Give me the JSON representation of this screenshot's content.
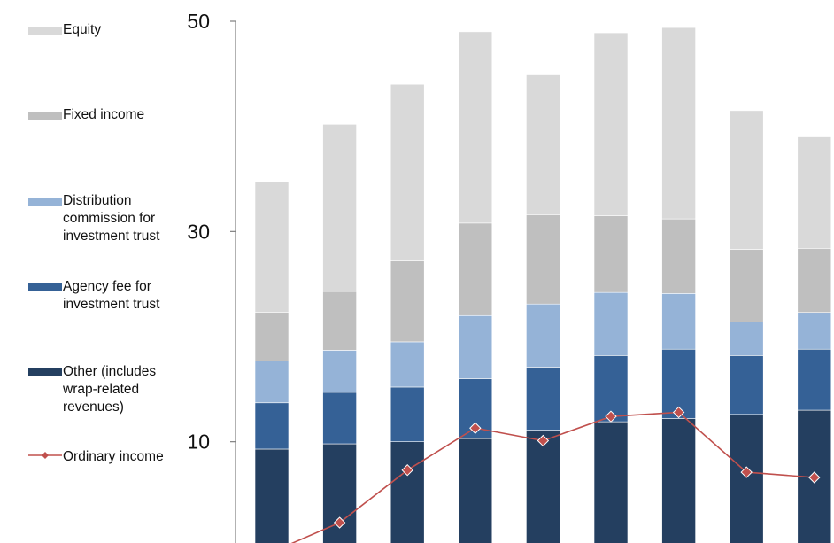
{
  "chart_data": {
    "type": "bar",
    "stacked": true,
    "title": "",
    "xlabel": "",
    "ylabel": "",
    "ylim": [
      -10,
      50
    ],
    "y_ticks": [
      10,
      30,
      50
    ],
    "grid": false,
    "legend_position": "left",
    "categories": [
      "",
      "",
      "",
      "",
      "",
      "",
      "",
      "",
      ""
    ],
    "series": [
      {
        "name": "Other (includes\nwrap-related\nrevenues)",
        "color": "#243f60",
        "values": [
          9.3,
          9.8,
          10.0,
          10.3,
          11.1,
          11.9,
          12.2,
          12.6,
          13.0
        ]
      },
      {
        "name": "Agency fee for\ninvestment trust",
        "color": "#356196",
        "values": [
          4.4,
          4.9,
          5.2,
          5.7,
          6.0,
          6.3,
          6.6,
          5.6,
          5.8
        ]
      },
      {
        "name": "Distribution\ncommission for\ninvestment trust",
        "color": "#95b3d7",
        "values": [
          4.0,
          4.0,
          4.3,
          6.0,
          6.0,
          6.0,
          5.3,
          3.2,
          3.5
        ]
      },
      {
        "name": "Fixed income",
        "color": "#bfbfbf",
        "values": [
          4.6,
          5.6,
          7.7,
          8.8,
          8.5,
          7.3,
          7.1,
          6.9,
          6.1
        ]
      },
      {
        "name": "Equity",
        "color": "#d9d9d9",
        "values": [
          12.4,
          15.9,
          16.8,
          18.2,
          13.3,
          17.4,
          18.2,
          13.2,
          10.6
        ]
      }
    ],
    "line_series": [
      {
        "name": "Ordinary income",
        "color": "#c0504d",
        "marker": "diamond",
        "values": [
          -0.5,
          2.3,
          7.3,
          11.3,
          10.1,
          12.4,
          12.8,
          7.1,
          6.6
        ]
      }
    ]
  }
}
